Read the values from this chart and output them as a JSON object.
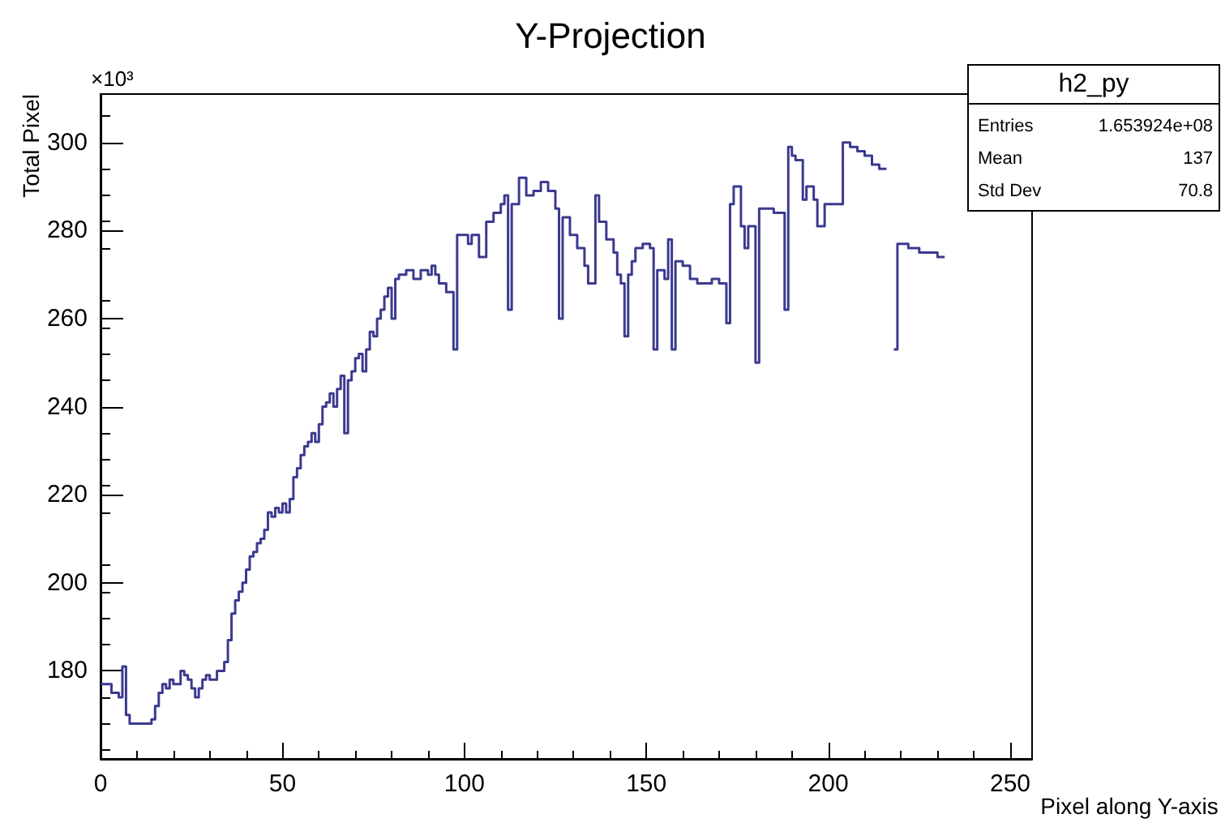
{
  "chart_data": {
    "type": "step",
    "title": "Y-Projection",
    "xlabel": "Pixel along Y-axis",
    "ylabel": "Total Pixel",
    "annotations": [
      "×10³",
      "h2_py",
      "Entries",
      "1.653924e+08",
      "Mean",
      "137",
      "Std Dev",
      "70.8"
    ],
    "xlim": [
      0,
      256
    ],
    "xticks": [
      0,
      50,
      100,
      150,
      200,
      250
    ],
    "ylim": [
      160,
      311
    ],
    "yticks": [
      180,
      200,
      220,
      240,
      260,
      280,
      300
    ],
    "grid": false,
    "series": [
      {
        "color": "#3b3a8f",
        "x": [
          0,
          3,
          5,
          6,
          7,
          8,
          14,
          15,
          16,
          17,
          18,
          19,
          20,
          22,
          23,
          24,
          25,
          26,
          27,
          28,
          29,
          30,
          32,
          34,
          35,
          36,
          37,
          38,
          39,
          40,
          41,
          42,
          43,
          44,
          45,
          46,
          47,
          48,
          49,
          50,
          51,
          52,
          53,
          54,
          55,
          56,
          57,
          58,
          59,
          60,
          61,
          62,
          63,
          64,
          65,
          66,
          67,
          68,
          69,
          70,
          71,
          72,
          73,
          74,
          75,
          76,
          77,
          78,
          79,
          80,
          81,
          82,
          84,
          86,
          88,
          90,
          91,
          92,
          93,
          95,
          97,
          98,
          101,
          102,
          104,
          106,
          108,
          110,
          111,
          112,
          113,
          115,
          117,
          119,
          121,
          123,
          125,
          126,
          127,
          129,
          131,
          133,
          134,
          136,
          137,
          139,
          141,
          142,
          143,
          144,
          145,
          146,
          147,
          149,
          151,
          152,
          153,
          155,
          156,
          157,
          158,
          160,
          162,
          164,
          166,
          168,
          170,
          172,
          173,
          174,
          176,
          177,
          178,
          180,
          181,
          185,
          188,
          189,
          190,
          191,
          193,
          194,
          196,
          197,
          199,
          203,
          204,
          206,
          208,
          210,
          212,
          214,
          216,
          218,
          219,
          222,
          225,
          228,
          230,
          232
        ],
        "values": [
          177,
          175,
          174,
          181,
          170,
          168,
          169,
          172,
          175,
          177,
          176,
          178,
          177,
          180,
          179,
          178,
          176,
          174,
          176,
          178,
          179,
          178,
          180,
          182,
          187,
          193,
          196,
          198,
          200,
          203,
          206,
          207,
          209,
          210,
          212,
          216,
          215,
          217,
          216,
          218,
          216,
          219,
          224,
          226,
          229,
          231,
          232,
          234,
          232,
          236,
          240,
          241,
          243,
          240,
          244,
          247,
          234,
          246,
          248,
          251,
          252,
          248,
          253,
          257,
          256,
          260,
          262,
          265,
          267,
          260,
          269,
          270,
          271,
          269,
          271,
          270,
          272,
          270,
          268,
          266,
          253,
          279,
          277,
          279,
          274,
          282,
          284,
          286,
          288,
          262,
          286,
          292,
          288,
          289,
          291,
          289,
          285,
          260,
          283,
          279,
          276,
          272,
          268,
          288,
          282,
          278,
          275,
          270,
          268,
          256,
          270,
          273,
          276,
          277,
          276,
          253,
          271,
          269,
          278,
          253,
          273,
          272,
          269,
          268,
          268,
          269,
          268,
          259,
          286,
          290,
          281,
          276,
          281,
          250,
          285,
          284,
          262,
          299,
          297,
          296,
          287,
          290,
          287,
          281,
          286,
          286,
          300,
          299,
          298,
          297,
          295,
          294,
          null,
          253,
          277,
          276,
          275,
          275,
          274,
          274
        ]
      }
    ]
  }
}
